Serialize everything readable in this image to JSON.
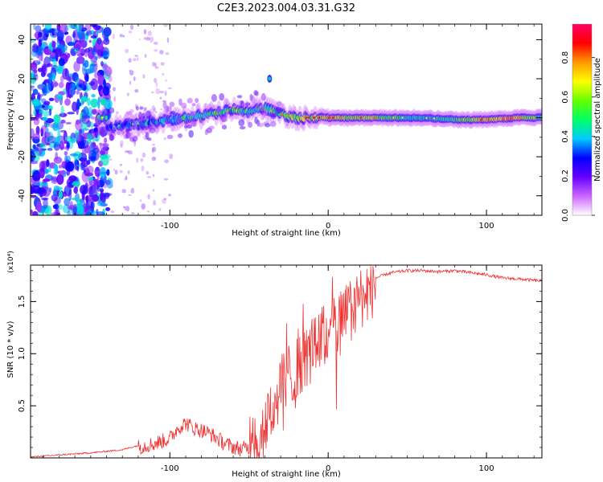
{
  "title": "C2E3.2023.004.03.31.G32",
  "chart_data": [
    {
      "type": "heatmap",
      "xlabel": "Height of straight line (km)",
      "ylabel": "Frequency (Hz)",
      "xlim": [
        -188,
        135
      ],
      "ylim": [
        -50,
        48
      ],
      "x_ticks": [
        -100,
        0,
        100
      ],
      "y_ticks": [
        -40,
        -20,
        0,
        20,
        40
      ],
      "colorbar": {
        "label": "Normalized spectral amplitude",
        "range": [
          0.0,
          0.97
        ],
        "ticks": [
          0.0,
          0.2,
          0.4,
          0.6,
          0.8
        ],
        "tick_labels": [
          "0.0",
          "0.2",
          "0.4",
          "0.6",
          "0.8"
        ],
        "colors": [
          "#ffffff",
          "#cc66ff",
          "#6600ff",
          "#0000ff",
          "#00ccff",
          "#00ff66",
          "#66ff00",
          "#ffff00",
          "#ff9900",
          "#ff0000",
          "#ff0066"
        ]
      },
      "ridge": {
        "x": [
          -140,
          -120,
          -100,
          -80,
          -60,
          -50,
          -40,
          -30,
          -20,
          -10,
          0,
          20,
          40,
          60,
          80,
          100,
          120,
          135
        ],
        "freq": [
          -5,
          -3,
          -1,
          1,
          4,
          3,
          5,
          2,
          0,
          0,
          0,
          0,
          0,
          0,
          -1,
          -1,
          0,
          0
        ],
        "amplitude": [
          0.3,
          0.4,
          0.5,
          0.5,
          0.6,
          0.5,
          0.55,
          0.6,
          0.7,
          0.7,
          0.75,
          0.7,
          0.55,
          0.5,
          0.55,
          0.8,
          0.8,
          0.5
        ]
      }
    },
    {
      "type": "line",
      "xlabel": "Height of straight line (km)",
      "ylabel": "SNR (10 * v/v)",
      "y_multiplier": "(x10⁴)",
      "xlim": [
        -188,
        135
      ],
      "ylim": [
        0,
        1.85
      ],
      "x_ticks": [
        -100,
        0,
        100
      ],
      "y_ticks": [
        0.5,
        1.0,
        1.5
      ],
      "y_tick_labels": [
        "0.5",
        "1.0",
        "1.5"
      ],
      "color": "#ee3333",
      "series": [
        {
          "x": [
            -188,
            -170,
            -150,
            -130,
            -120,
            -110,
            -100,
            -95,
            -90,
            -85,
            -80,
            -75,
            -70,
            -65,
            -60,
            -55,
            -50,
            -45,
            -40,
            -35,
            -30,
            -25,
            -20,
            -15,
            -10,
            -5,
            0,
            5,
            10,
            15,
            20,
            25,
            30,
            40,
            50,
            60,
            70,
            80,
            90,
            100,
            110,
            120,
            135
          ],
          "values": [
            0.01,
            0.03,
            0.05,
            0.08,
            0.12,
            0.15,
            0.2,
            0.3,
            0.35,
            0.3,
            0.28,
            0.25,
            0.2,
            0.15,
            0.12,
            0.1,
            0.12,
            0.25,
            0.4,
            0.55,
            0.7,
            0.85,
            0.95,
            1.0,
            1.1,
            1.2,
            1.25,
            1.35,
            1.4,
            1.5,
            1.6,
            1.68,
            1.73,
            1.78,
            1.8,
            1.8,
            1.79,
            1.8,
            1.78,
            1.76,
            1.73,
            1.72,
            1.7
          ]
        }
      ]
    }
  ]
}
